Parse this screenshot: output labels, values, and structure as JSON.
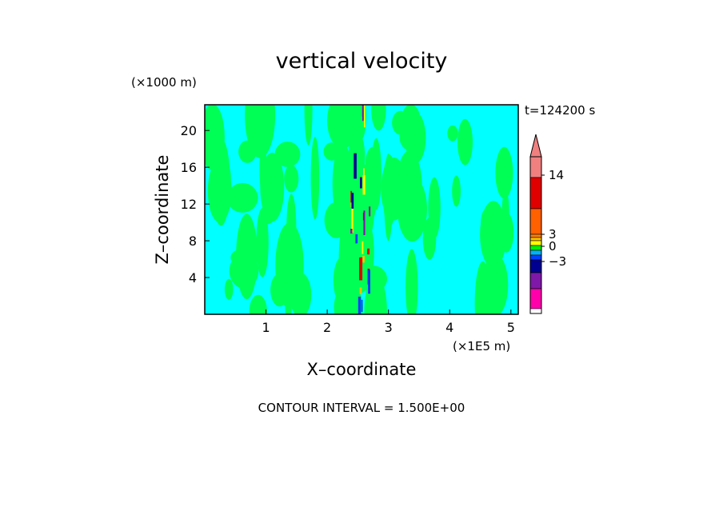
{
  "chart_data": {
    "type": "heatmap",
    "title": "vertical velocity",
    "xlabel": "X–coordinate",
    "ylabel": "Z–coordinate",
    "x_unit_label": "(×1E5 m)",
    "y_unit_label": "(×1000 m)",
    "time_label": "t=124200 s",
    "footer": "CONTOUR INTERVAL = 1.500E+00",
    "xlim": [
      0,
      5.12
    ],
    "ylim": [
      0,
      22.8
    ],
    "x_ticks": [
      1,
      2,
      3,
      4,
      5
    ],
    "y_ticks": [
      4,
      8,
      12,
      16,
      20
    ],
    "colorbar": {
      "labels": [
        {
          "value": 14,
          "text": "14"
        },
        {
          "value": 3,
          "text": "3"
        },
        {
          "value": 0,
          "text": "0"
        },
        {
          "value": -3,
          "text": "−3"
        }
      ],
      "levels": [
        {
          "color": "#ff00aa"
        },
        {
          "color": "#7f18a8"
        },
        {
          "color": "#000090"
        },
        {
          "color": "#0040ff"
        },
        {
          "color": "#00b0ff"
        },
        {
          "color": "#00ee00"
        },
        {
          "color": "#ffff00"
        },
        {
          "color": "#ffc000"
        },
        {
          "color": "#ff8000"
        },
        {
          "color": "#ff6000"
        },
        {
          "color": "#e00000"
        },
        {
          "color": "#f08080"
        }
      ]
    },
    "background_color": "#00ffff",
    "updraft_color": "#00ff55"
  }
}
